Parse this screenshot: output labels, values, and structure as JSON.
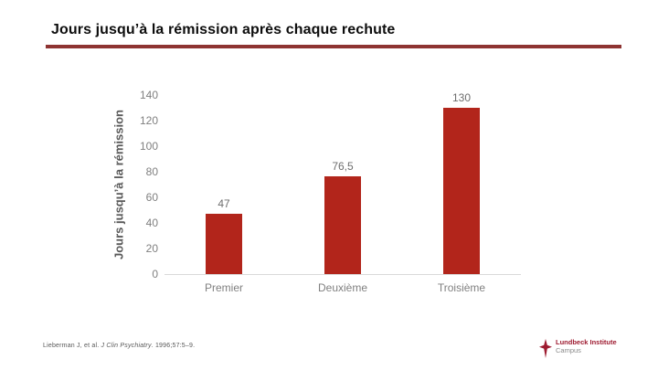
{
  "slide": {
    "title": "Jours jusqu’à la rémission après chaque rechute",
    "accent_color": "#8e3432"
  },
  "chart_data": {
    "type": "bar",
    "title": "Jours jusqu’à la rémission après chaque rechute",
    "categories": [
      "Premier",
      "Deuxième",
      "Troisième"
    ],
    "values": [
      47,
      76.5,
      130
    ],
    "value_labels": [
      "47",
      "76,5",
      "130"
    ],
    "xlabel": "",
    "ylabel": "Jours jusqu’à la rémission",
    "ylim": [
      0,
      140
    ],
    "yticks": [
      0,
      20,
      40,
      60,
      80,
      100,
      120,
      140
    ],
    "bar_color": "#b2251b",
    "grid": false,
    "legend": false,
    "axis_line_color": "#d9d9d9"
  },
  "footnote": {
    "prefix": "Lieberman J, et al. ",
    "journal": "J Clin Psychiatry",
    "suffix": ". 1996;57:5–9."
  },
  "logo": {
    "line1": "Lundbeck Institute",
    "line2": "Campus",
    "color": "#9e1b30",
    "icon": "lundbeck-star-icon"
  }
}
